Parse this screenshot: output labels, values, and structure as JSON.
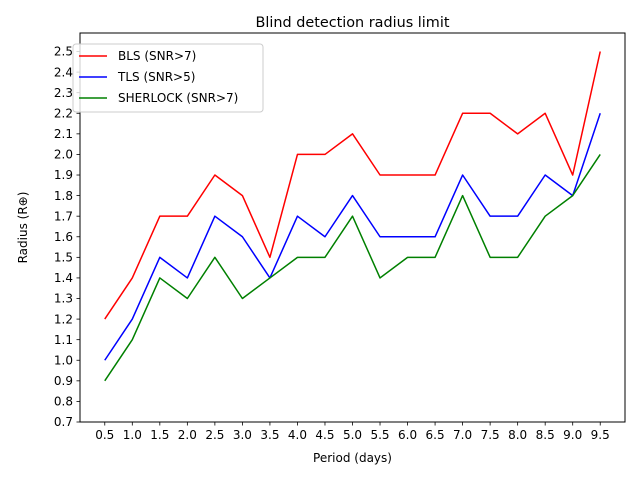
{
  "chart_data": {
    "type": "line",
    "title": "Blind detection radius limit",
    "xlabel": "Period (days)",
    "ylabel": "Radius (R⊕)",
    "x": [
      0.5,
      1.0,
      1.5,
      2.0,
      2.5,
      3.0,
      3.5,
      4.0,
      4.5,
      5.0,
      5.5,
      6.0,
      6.5,
      7.0,
      7.5,
      8.0,
      8.5,
      9.0,
      9.5
    ],
    "x_tick_labels": [
      "0.5",
      "1.0",
      "1.5",
      "2.0",
      "2.5",
      "3.0",
      "3.5",
      "4.0",
      "4.5",
      "5.0",
      "5.5",
      "6.0",
      "6.5",
      "7.0",
      "7.5",
      "8.0",
      "8.5",
      "9.0",
      "9.5"
    ],
    "y_ticks": [
      0.7,
      0.8,
      0.9,
      1.0,
      1.1,
      1.2,
      1.3,
      1.4,
      1.5,
      1.6,
      1.7,
      1.8,
      1.9,
      2.0,
      2.1,
      2.2,
      2.3,
      2.4,
      2.5
    ],
    "y_tick_labels": [
      "0.7",
      "0.8",
      "0.9",
      "1.0",
      "1.1",
      "1.2",
      "1.3",
      "1.4",
      "1.5",
      "1.6",
      "1.7",
      "1.8",
      "1.9",
      "2.0",
      "2.1",
      "2.2",
      "2.3",
      "2.4",
      "2.5"
    ],
    "xlim": [
      0.05,
      9.95
    ],
    "ylim": [
      0.7,
      2.59
    ],
    "grid": false,
    "legend_position": "top-left",
    "series": [
      {
        "name": "BLS (SNR>7)",
        "color": "#ff0000",
        "values": [
          1.2,
          1.4,
          1.7,
          1.7,
          1.9,
          1.8,
          1.5,
          2.0,
          2.0,
          2.1,
          1.9,
          1.9,
          1.9,
          2.2,
          2.2,
          2.1,
          2.2,
          1.9,
          2.5
        ]
      },
      {
        "name": "TLS (SNR>5)",
        "color": "#0000ff",
        "values": [
          1.0,
          1.2,
          1.5,
          1.4,
          1.7,
          1.6,
          1.4,
          1.7,
          1.6,
          1.8,
          1.6,
          1.6,
          1.6,
          1.9,
          1.7,
          1.7,
          1.9,
          1.8,
          2.2
        ]
      },
      {
        "name": "SHERLOCK (SNR>7)",
        "color": "#008000",
        "values": [
          0.9,
          1.1,
          1.4,
          1.3,
          1.5,
          1.3,
          1.4,
          1.5,
          1.5,
          1.7,
          1.4,
          1.5,
          1.5,
          1.8,
          1.5,
          1.5,
          1.7,
          1.8,
          2.0
        ]
      }
    ]
  }
}
